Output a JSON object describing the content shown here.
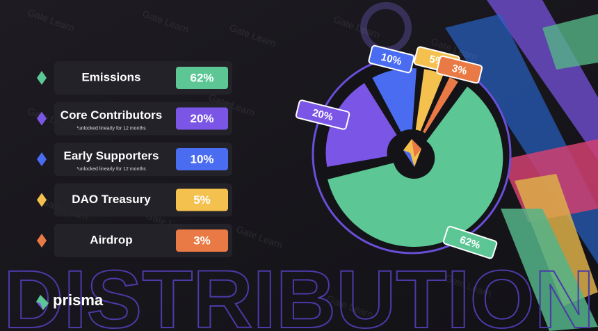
{
  "chart_data": {
    "type": "pie",
    "title": "DISTRIBUTION",
    "categories": [
      "Emissions",
      "Core Contributors",
      "Early Supporters",
      "DAO Treasury",
      "Airdrop"
    ],
    "notes": [
      null,
      "*unlocked linearly for 12 months",
      "*unlocked linearly for 12 months",
      null,
      null
    ],
    "values": [
      62,
      20,
      10,
      5,
      3
    ],
    "value_labels": [
      "62%",
      "20%",
      "10%",
      "5%",
      "3%"
    ],
    "colors": [
      "#5cc795",
      "#7a55e6",
      "#4a6cf0",
      "#f4c14f",
      "#ea7a45"
    ]
  },
  "brand": "prisma",
  "watermark": "Gate Learn"
}
